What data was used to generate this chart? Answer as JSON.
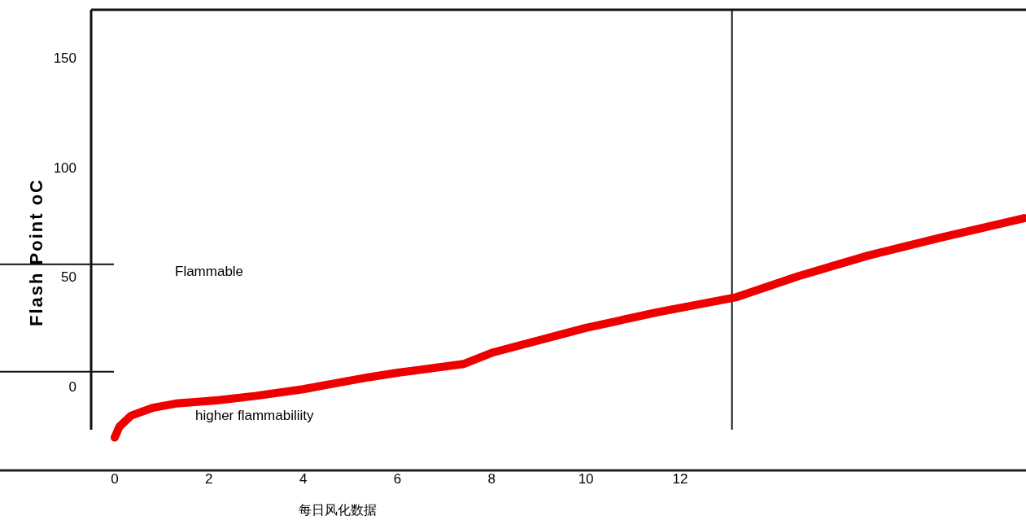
{
  "chart_data": {
    "type": "line",
    "xlabel": "每日风化数据",
    "ylabel": "Flash Point oC",
    "x": [
      0,
      0.1,
      0.35,
      0.8,
      1.3,
      2.2,
      3,
      4,
      4.5,
      5.4,
      6,
      7.4,
      8,
      10,
      11.5,
      13.2,
      14.5,
      16,
      17.5,
      19.3
    ],
    "series": [
      {
        "color": "#ee0000",
        "values": [
          -23,
          -18,
          -13,
          -9.5,
          -7.5,
          -6,
          -4,
          -1,
          1,
          4.5,
          6.5,
          10.5,
          15.6,
          27,
          34,
          41,
          50.5,
          60,
          68,
          77
        ]
      }
    ],
    "xlim": [
      -2.435,
      19.34
    ],
    "ylim": [
      -38,
      172
    ],
    "xticks": [
      0,
      2,
      4,
      6,
      8,
      10,
      12
    ],
    "yticks": [
      0,
      50,
      100,
      150
    ],
    "ref_lines": [
      {
        "axis": "y",
        "value": 56
      },
      {
        "axis": "y",
        "value": 7
      },
      {
        "axis": "x",
        "value": 13.1
      }
    ],
    "annotations": [
      "Flammable",
      "higher flammabiliity"
    ]
  }
}
